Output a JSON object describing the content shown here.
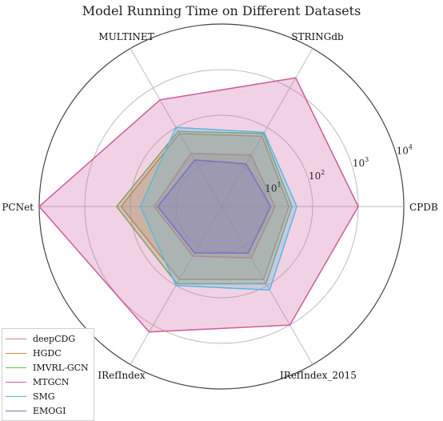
{
  "chart_data": {
    "type": "radar",
    "title": "Model Running Time on Different Datasets",
    "axes": [
      "CPDB",
      "STRINGdb",
      "MULTINET",
      "PCNet",
      "IRefIndex",
      "IRefIndex_2015"
    ],
    "scale": "log",
    "rlim": [
      1,
      10000
    ],
    "ticks": [
      {
        "value": 10,
        "label": "10",
        "exp": "1"
      },
      {
        "value": 100,
        "label": "10",
        "exp": "2"
      },
      {
        "value": 1000,
        "label": "10",
        "exp": "3"
      },
      {
        "value": 10000,
        "label": "10",
        "exp": "4"
      }
    ],
    "grid": true,
    "legend_position": "lower-left",
    "series": [
      {
        "name": "deepCDG",
        "color": "#e8737a",
        "values": [
          15,
          20,
          22,
          30,
          18,
          20
        ]
      },
      {
        "name": "HGDC",
        "color": "#c98f3a",
        "values": [
          30,
          60,
          70,
          160,
          70,
          70
        ]
      },
      {
        "name": "IMVRL-GCN",
        "color": "#6fb64a",
        "values": [
          35,
          70,
          80,
          200,
          90,
          90
        ]
      },
      {
        "name": "MTGCN",
        "color": "#cc5c9e",
        "values": [
          1000,
          1800,
          500,
          10000,
          1500,
          1000
        ]
      },
      {
        "name": "SMG",
        "color": "#59b8e0",
        "values": [
          45,
          75,
          100,
          60,
          100,
          130
        ]
      },
      {
        "name": "EMOGI",
        "color": "#7b6fc7",
        "values": [
          12,
          12,
          15,
          25,
          15,
          15
        ]
      }
    ]
  }
}
